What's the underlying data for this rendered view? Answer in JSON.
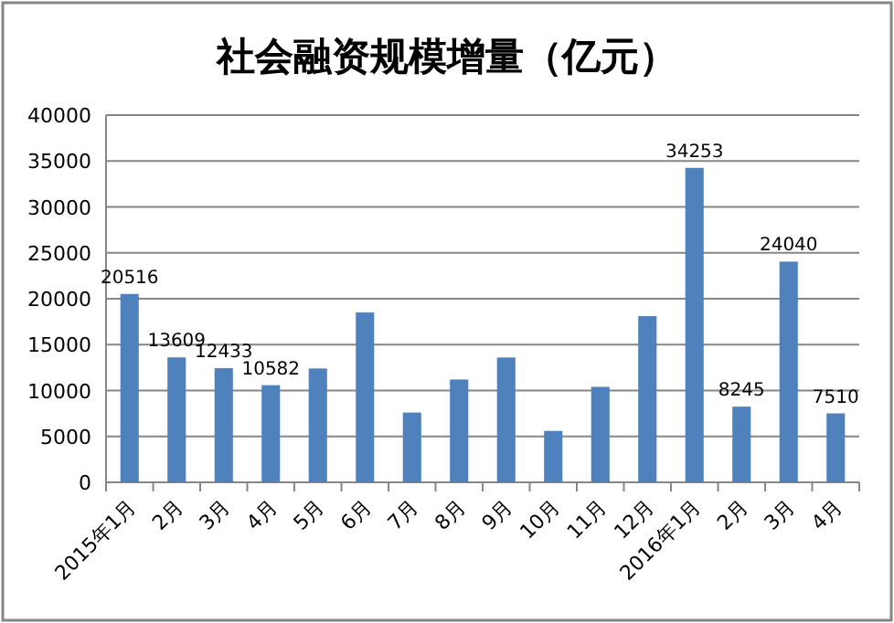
{
  "chart_data": {
    "type": "bar",
    "title": "社会融资规模增量（亿元）",
    "categories": [
      "2015年1月",
      "2月",
      "3月",
      "4月",
      "5月",
      "6月",
      "7月",
      "8月",
      "9月",
      "10月",
      "11月",
      "12月",
      "2016年1月",
      "2月",
      "3月",
      "4月"
    ],
    "values": [
      20516,
      13609,
      12433,
      10582,
      12400,
      18500,
      7600,
      11200,
      13600,
      5600,
      10400,
      18100,
      34253,
      8245,
      24040,
      7510
    ],
    "value_labels": [
      "20516",
      "13609",
      "12433",
      "10582",
      null,
      null,
      null,
      null,
      null,
      null,
      null,
      null,
      "34253",
      "8245",
      "24040",
      "7510"
    ],
    "color": "#4f81bd",
    "ylim": [
      0,
      40000
    ],
    "yticks": [
      0,
      5000,
      10000,
      15000,
      20000,
      25000,
      30000,
      35000,
      40000
    ],
    "grid": "y"
  }
}
